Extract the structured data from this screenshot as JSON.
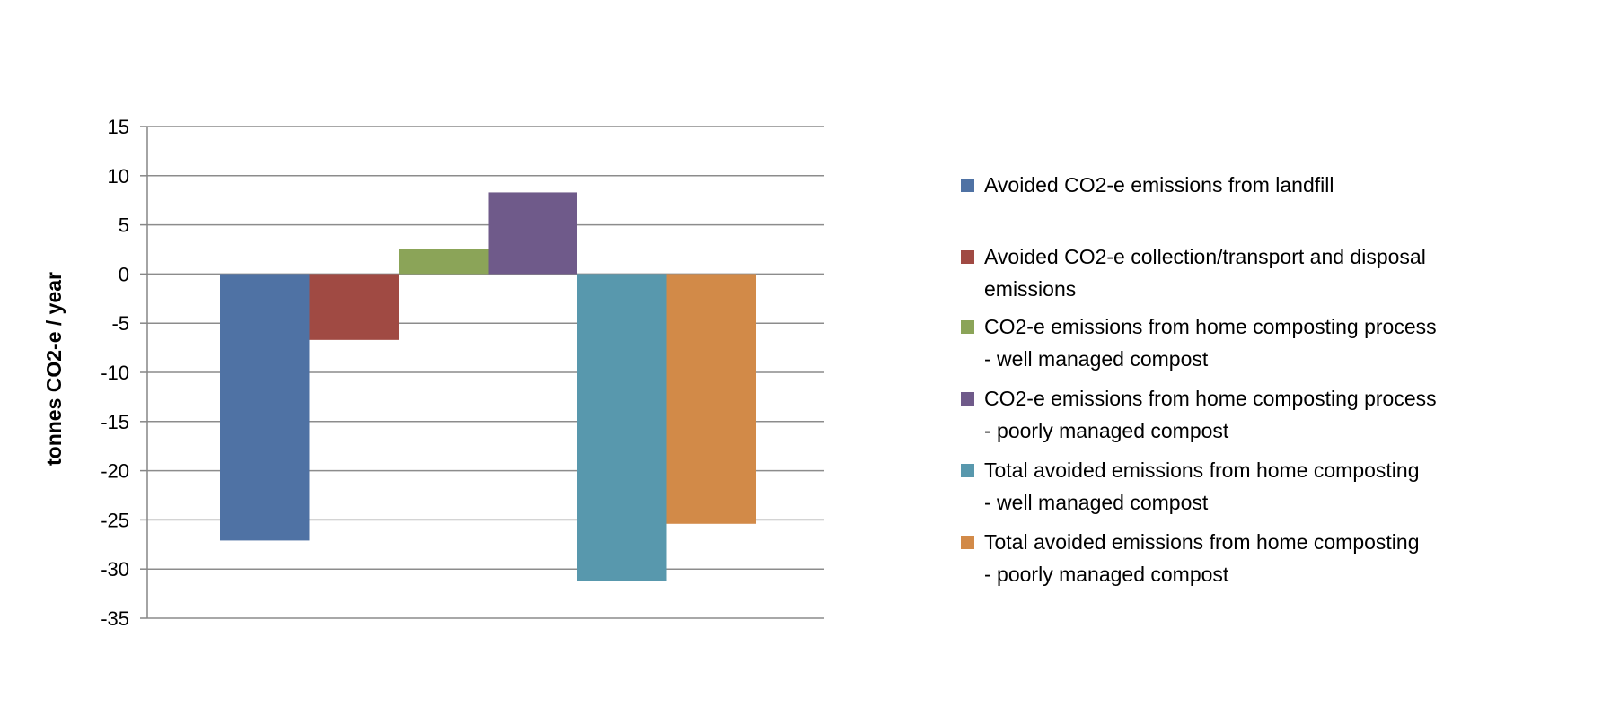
{
  "chart_data": {
    "type": "bar",
    "title": "",
    "xlabel": "",
    "ylabel": "tonnes CO2-e / year",
    "ylim": [
      -35,
      15
    ],
    "yticks": [
      15,
      10,
      5,
      0,
      -5,
      -10,
      -15,
      -20,
      -25,
      -30,
      -35
    ],
    "grid": true,
    "legend_position": "right",
    "series": [
      {
        "name": "Avoided CO2-e emissions from landfill",
        "value": -27.1,
        "color": "#4F72A4"
      },
      {
        "name": "Avoided CO2-e collection/transport and disposal\nemissions",
        "value": -6.7,
        "color": "#A04A43"
      },
      {
        "name": "CO2-e emissions from home composting process\n- well managed compost",
        "value": 2.5,
        "color": "#8BA458"
      },
      {
        "name": "CO2-e emissions from home composting process\n- poorly managed compost",
        "value": 8.3,
        "color": "#6F5A8A"
      },
      {
        "name": "Total avoided emissions from home composting\n- well managed compost",
        "value": -31.2,
        "color": "#5898AD"
      },
      {
        "name": "Total avoided emissions from home composting\n- poorly managed compost",
        "value": -25.4,
        "color": "#D28A48"
      }
    ]
  }
}
